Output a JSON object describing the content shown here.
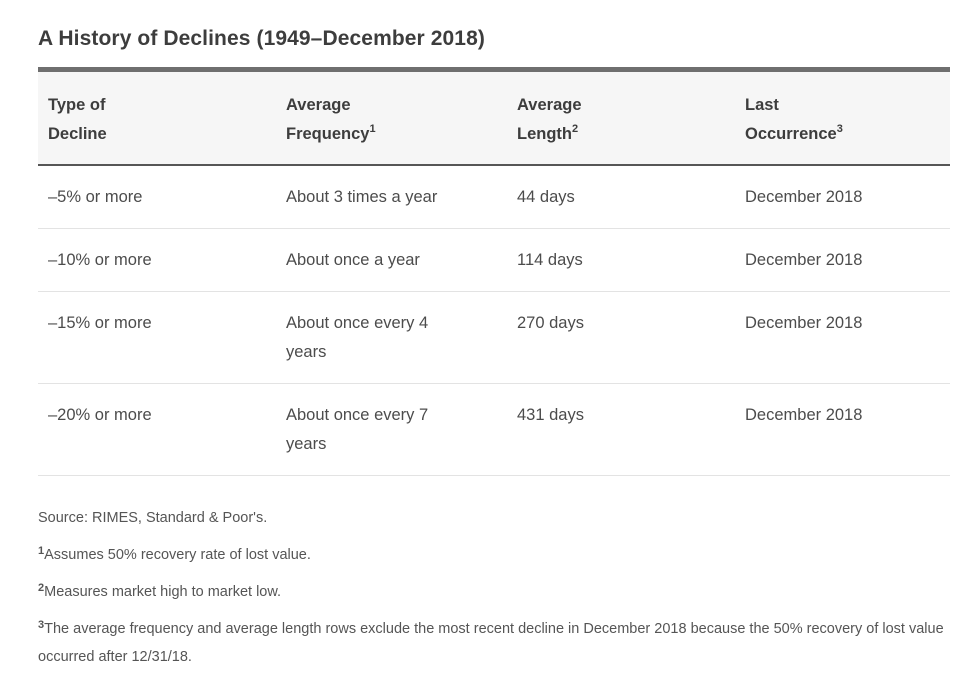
{
  "page": {
    "title": "A History of Declines (1949–December 2018)"
  },
  "table": {
    "columns": [
      {
        "line1": "Type of",
        "line2": "Decline",
        "sup": ""
      },
      {
        "line1": "Average",
        "line2": "Frequency",
        "sup": "1"
      },
      {
        "line1": "Average",
        "line2": "Length",
        "sup": "2"
      },
      {
        "line1": "Last",
        "line2": "Occurrence",
        "sup": "3"
      }
    ],
    "rows": [
      {
        "decline": "–5% or more",
        "frequency": "About 3 times a year",
        "length": "44 days",
        "occurrence": "December 2018"
      },
      {
        "decline": "–10% or more",
        "frequency": "About once a year",
        "length": "114 days",
        "occurrence": "December 2018"
      },
      {
        "decline": "–15% or more",
        "frequency": [
          "About once every 4",
          "years"
        ],
        "length": "270 days",
        "occurrence": "December 2018"
      },
      {
        "decline": "–20% or more",
        "frequency": [
          "About once every 7",
          "years"
        ],
        "length": "431 days",
        "occurrence": "December 2018"
      }
    ]
  },
  "footnotes": {
    "source": "Source: RIMES, Standard & Poor's.",
    "notes": [
      {
        "sup": "1",
        "text": "Assumes 50% recovery rate of lost value."
      },
      {
        "sup": "2",
        "text": "Measures market high to market low."
      },
      {
        "sup": "3",
        "text": "The average frequency and average length rows exclude the most recent decline in December 2018 because the 50% recovery of lost value occurred after 12/31/18."
      }
    ]
  },
  "colors": {
    "title_text": "#3d3d3d",
    "body_text": "#4c4c4c",
    "footnote_text": "#555555",
    "top_bar": "#6f6f6f",
    "header_underline": "#565656",
    "row_divider": "#e3e3e3",
    "header_background": "#f6f6f6",
    "page_background": "#ffffff"
  },
  "chart_data": {
    "type": "table",
    "title": "A History of Declines (1949–December 2018)",
    "columns": [
      "Type of Decline",
      "Average Frequency",
      "Average Length",
      "Last Occurrence"
    ],
    "rows": [
      [
        "–5% or more",
        "About 3 times a year",
        "44 days",
        "December 2018"
      ],
      [
        "–10% or more",
        "About once a year",
        "114 days",
        "December 2018"
      ],
      [
        "–15% or more",
        "About once every 4 years",
        "270 days",
        "December 2018"
      ],
      [
        "–20% or more",
        "About once every 7 years",
        "431 days",
        "December 2018"
      ]
    ],
    "footnotes": [
      "Source: RIMES, Standard & Poor's.",
      "1 Assumes 50% recovery rate of lost value.",
      "2 Measures market high to market low.",
      "3 The average frequency and average length rows exclude the most recent decline in December 2018 because the 50% recovery of lost value occurred after 12/31/18."
    ]
  }
}
